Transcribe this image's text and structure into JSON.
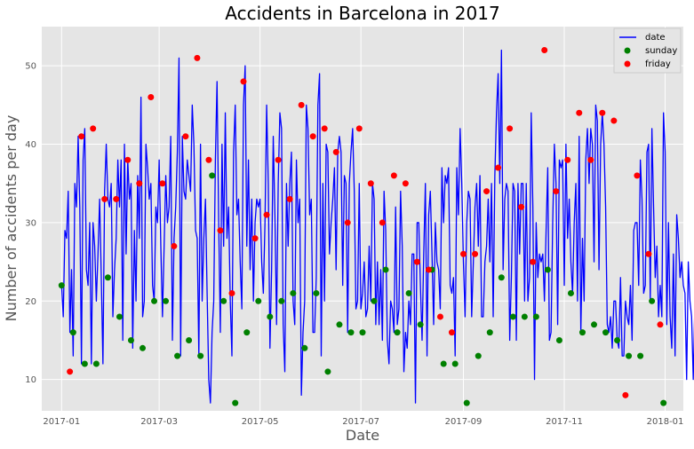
{
  "chart_data": {
    "type": "line",
    "title": "Accidents in Barcelona in 2017",
    "xlabel": "Date",
    "ylabel": "Number of accidents per day",
    "grid": true,
    "legend_position": "top-right",
    "x_range": [
      "2016-12-20",
      "2018-01-12"
    ],
    "y_range": [
      6,
      55
    ],
    "x_ticks": [
      "2017-01",
      "2017-03",
      "2017-05",
      "2017-07",
      "2017-09",
      "2017-11",
      "2018-01"
    ],
    "y_ticks": [
      10,
      20,
      30,
      40,
      50
    ],
    "start_date": "2017-01-01",
    "series": [
      {
        "name": "date",
        "kind": "line",
        "color": "#0000ff",
        "values": [
          22,
          18,
          29,
          28,
          34,
          16,
          24,
          13,
          35,
          32,
          41,
          32,
          12,
          38,
          42,
          24,
          22,
          30,
          12,
          30,
          27,
          20,
          26,
          33,
          23,
          12,
          34,
          40,
          33,
          32,
          35,
          18,
          24,
          28,
          38,
          32,
          38,
          15,
          40,
          26,
          38,
          33,
          35,
          14,
          29,
          20,
          36,
          28,
          46,
          18,
          20,
          40,
          37,
          33,
          35,
          22,
          20,
          32,
          30,
          38,
          27,
          18,
          27,
          36,
          30,
          32,
          41,
          15,
          28,
          32,
          39,
          51,
          13,
          41,
          34,
          33,
          38,
          36,
          34,
          45,
          40,
          29,
          28,
          13,
          40,
          20,
          28,
          33,
          21,
          10,
          7,
          16,
          20,
          38,
          48,
          30,
          16,
          40,
          27,
          44,
          28,
          32,
          20,
          13,
          39,
          45,
          31,
          33,
          25,
          19,
          45,
          50,
          27,
          38,
          24,
          33,
          20,
          30,
          33,
          32,
          33,
          25,
          21,
          30,
          45,
          35,
          14,
          24,
          41,
          31,
          17,
          35,
          44,
          42,
          17,
          11,
          35,
          27,
          35,
          39,
          20,
          17,
          38,
          30,
          33,
          8,
          16,
          20,
          45,
          42,
          31,
          33,
          16,
          16,
          23,
          45,
          49,
          13,
          35,
          20,
          40,
          39,
          26,
          30,
          33,
          37,
          24,
          39,
          41,
          39,
          22,
          36,
          35,
          16,
          35,
          39,
          42,
          34,
          19,
          20,
          35,
          19,
          21,
          25,
          18,
          19,
          27,
          20,
          35,
          33,
          17,
          25,
          17,
          24,
          15,
          34,
          29,
          15,
          12,
          20,
          19,
          16,
          32,
          17,
          19,
          34,
          27,
          11,
          16,
          14,
          20,
          17,
          26,
          26,
          7,
          30,
          30,
          22,
          15,
          26,
          35,
          13,
          31,
          34,
          26,
          17,
          30,
          25,
          24,
          19,
          37,
          30,
          36,
          35,
          37,
          22,
          21,
          23,
          13,
          37,
          31,
          42,
          35,
          25,
          18,
          30,
          34,
          33,
          18,
          25,
          32,
          35,
          27,
          36,
          18,
          18,
          25,
          27,
          33,
          25,
          35,
          18,
          36,
          44,
          49,
          35,
          52,
          24,
          33,
          35,
          34,
          15,
          23,
          35,
          34,
          15,
          35,
          26,
          35,
          35,
          20,
          35,
          20,
          23,
          44,
          32,
          10,
          30,
          23,
          26,
          25,
          26,
          20,
          29,
          37,
          15,
          16,
          30,
          40,
          35,
          17,
          38,
          37,
          38,
          22,
          40,
          28,
          33,
          25,
          21,
          30,
          35,
          20,
          41,
          16,
          28,
          20,
          38,
          42,
          35,
          42,
          40,
          25,
          45,
          43,
          24,
          40,
          44,
          40,
          32,
          17,
          16,
          18,
          14,
          20,
          20,
          15,
          14,
          23,
          13,
          13,
          20,
          18,
          17,
          22,
          15,
          29,
          30,
          30,
          22,
          38,
          33,
          21,
          22,
          39,
          40,
          20,
          42,
          32,
          23,
          27,
          18,
          22,
          18,
          44,
          39,
          17,
          30,
          18,
          14,
          26,
          13,
          31,
          28,
          23,
          25,
          22,
          21,
          10,
          25,
          20,
          18,
          10,
          20,
          11,
          20,
          16,
          15,
          26,
          21,
          19,
          28,
          17
        ]
      },
      {
        "name": "sunday",
        "kind": "scatter",
        "color": "#008000",
        "values": [
          22,
          16,
          12,
          12,
          23,
          18,
          15,
          14,
          20,
          20,
          13,
          15,
          13,
          36,
          20,
          7,
          16,
          20,
          18,
          20,
          21,
          14,
          21,
          11,
          17,
          16,
          16,
          20,
          24,
          16,
          21,
          17,
          24,
          12,
          12,
          7,
          13,
          16,
          23,
          18,
          18,
          18,
          24,
          15,
          21,
          16,
          17,
          16,
          15,
          13,
          13,
          20,
          7
        ]
      },
      {
        "name": "friday",
        "kind": "scatter",
        "color": "#ff0000",
        "values": [
          11,
          41,
          42,
          33,
          33,
          38,
          35,
          46,
          35,
          27,
          41,
          51,
          38,
          29,
          21,
          48,
          28,
          31,
          38,
          33,
          45,
          41,
          42,
          39,
          30,
          42,
          35,
          30,
          36,
          35,
          25,
          24,
          18,
          16,
          26,
          26,
          34,
          37,
          42,
          32,
          25,
          52,
          34,
          38,
          44,
          38,
          44,
          43,
          8,
          36,
          26,
          17
        ]
      }
    ]
  }
}
